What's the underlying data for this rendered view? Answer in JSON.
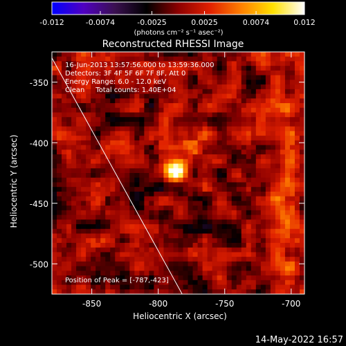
{
  "chart_data": {
    "type": "heatmap",
    "title": "Reconstructed RHESSI Image",
    "xlabel": "Heliocentric X (arcsec)",
    "ylabel": "Heliocentric Y (arcsec)",
    "xlim": [
      -880,
      -690
    ],
    "ylim": [
      -525,
      -325
    ],
    "x_ticks": [
      -850,
      -800,
      -750,
      -700
    ],
    "x_tick_labels": [
      "-850",
      "-800",
      "-750",
      "-700"
    ],
    "y_ticks": [
      -350,
      -400,
      -450,
      -500
    ],
    "y_tick_labels": [
      "-350",
      "-400",
      "-450",
      "-500"
    ],
    "colorbar": {
      "min": -0.012,
      "max": 0.012,
      "ticks": [
        -0.012,
        -0.0074,
        -0.0025,
        0.0025,
        0.0074,
        0.012
      ],
      "tick_labels": [
        "-0.012",
        "-0.0074",
        "-0.0025",
        "0.0025",
        "0.0074",
        "0.012"
      ],
      "units": "(photons cm⁻² s⁻¹ asec⁻²)",
      "colors": [
        "#0000ff",
        "#5000c0",
        "#3a1050",
        "#000000",
        "#8c0000",
        "#e02000",
        "#ff8000",
        "#ffe000",
        "#ffffff"
      ]
    },
    "annotations": [
      "16-Jun-2013 13:57:56.000 to 13:59:36.000",
      "Detectors: 3F 4F 5F 6F 7F 8F, Att 0",
      "Energy Range: 6.0 - 12.0 keV",
      "Clean     Total counts: 1.40E+04"
    ],
    "peak_label": "Position of Peak = [-787,-423]",
    "peak": [
      -787,
      -423
    ],
    "limb_line": [
      [
        -880,
        -330
      ],
      [
        -782,
        -525
      ]
    ]
  },
  "footer": {
    "date": "14-May-2022 16:57"
  }
}
